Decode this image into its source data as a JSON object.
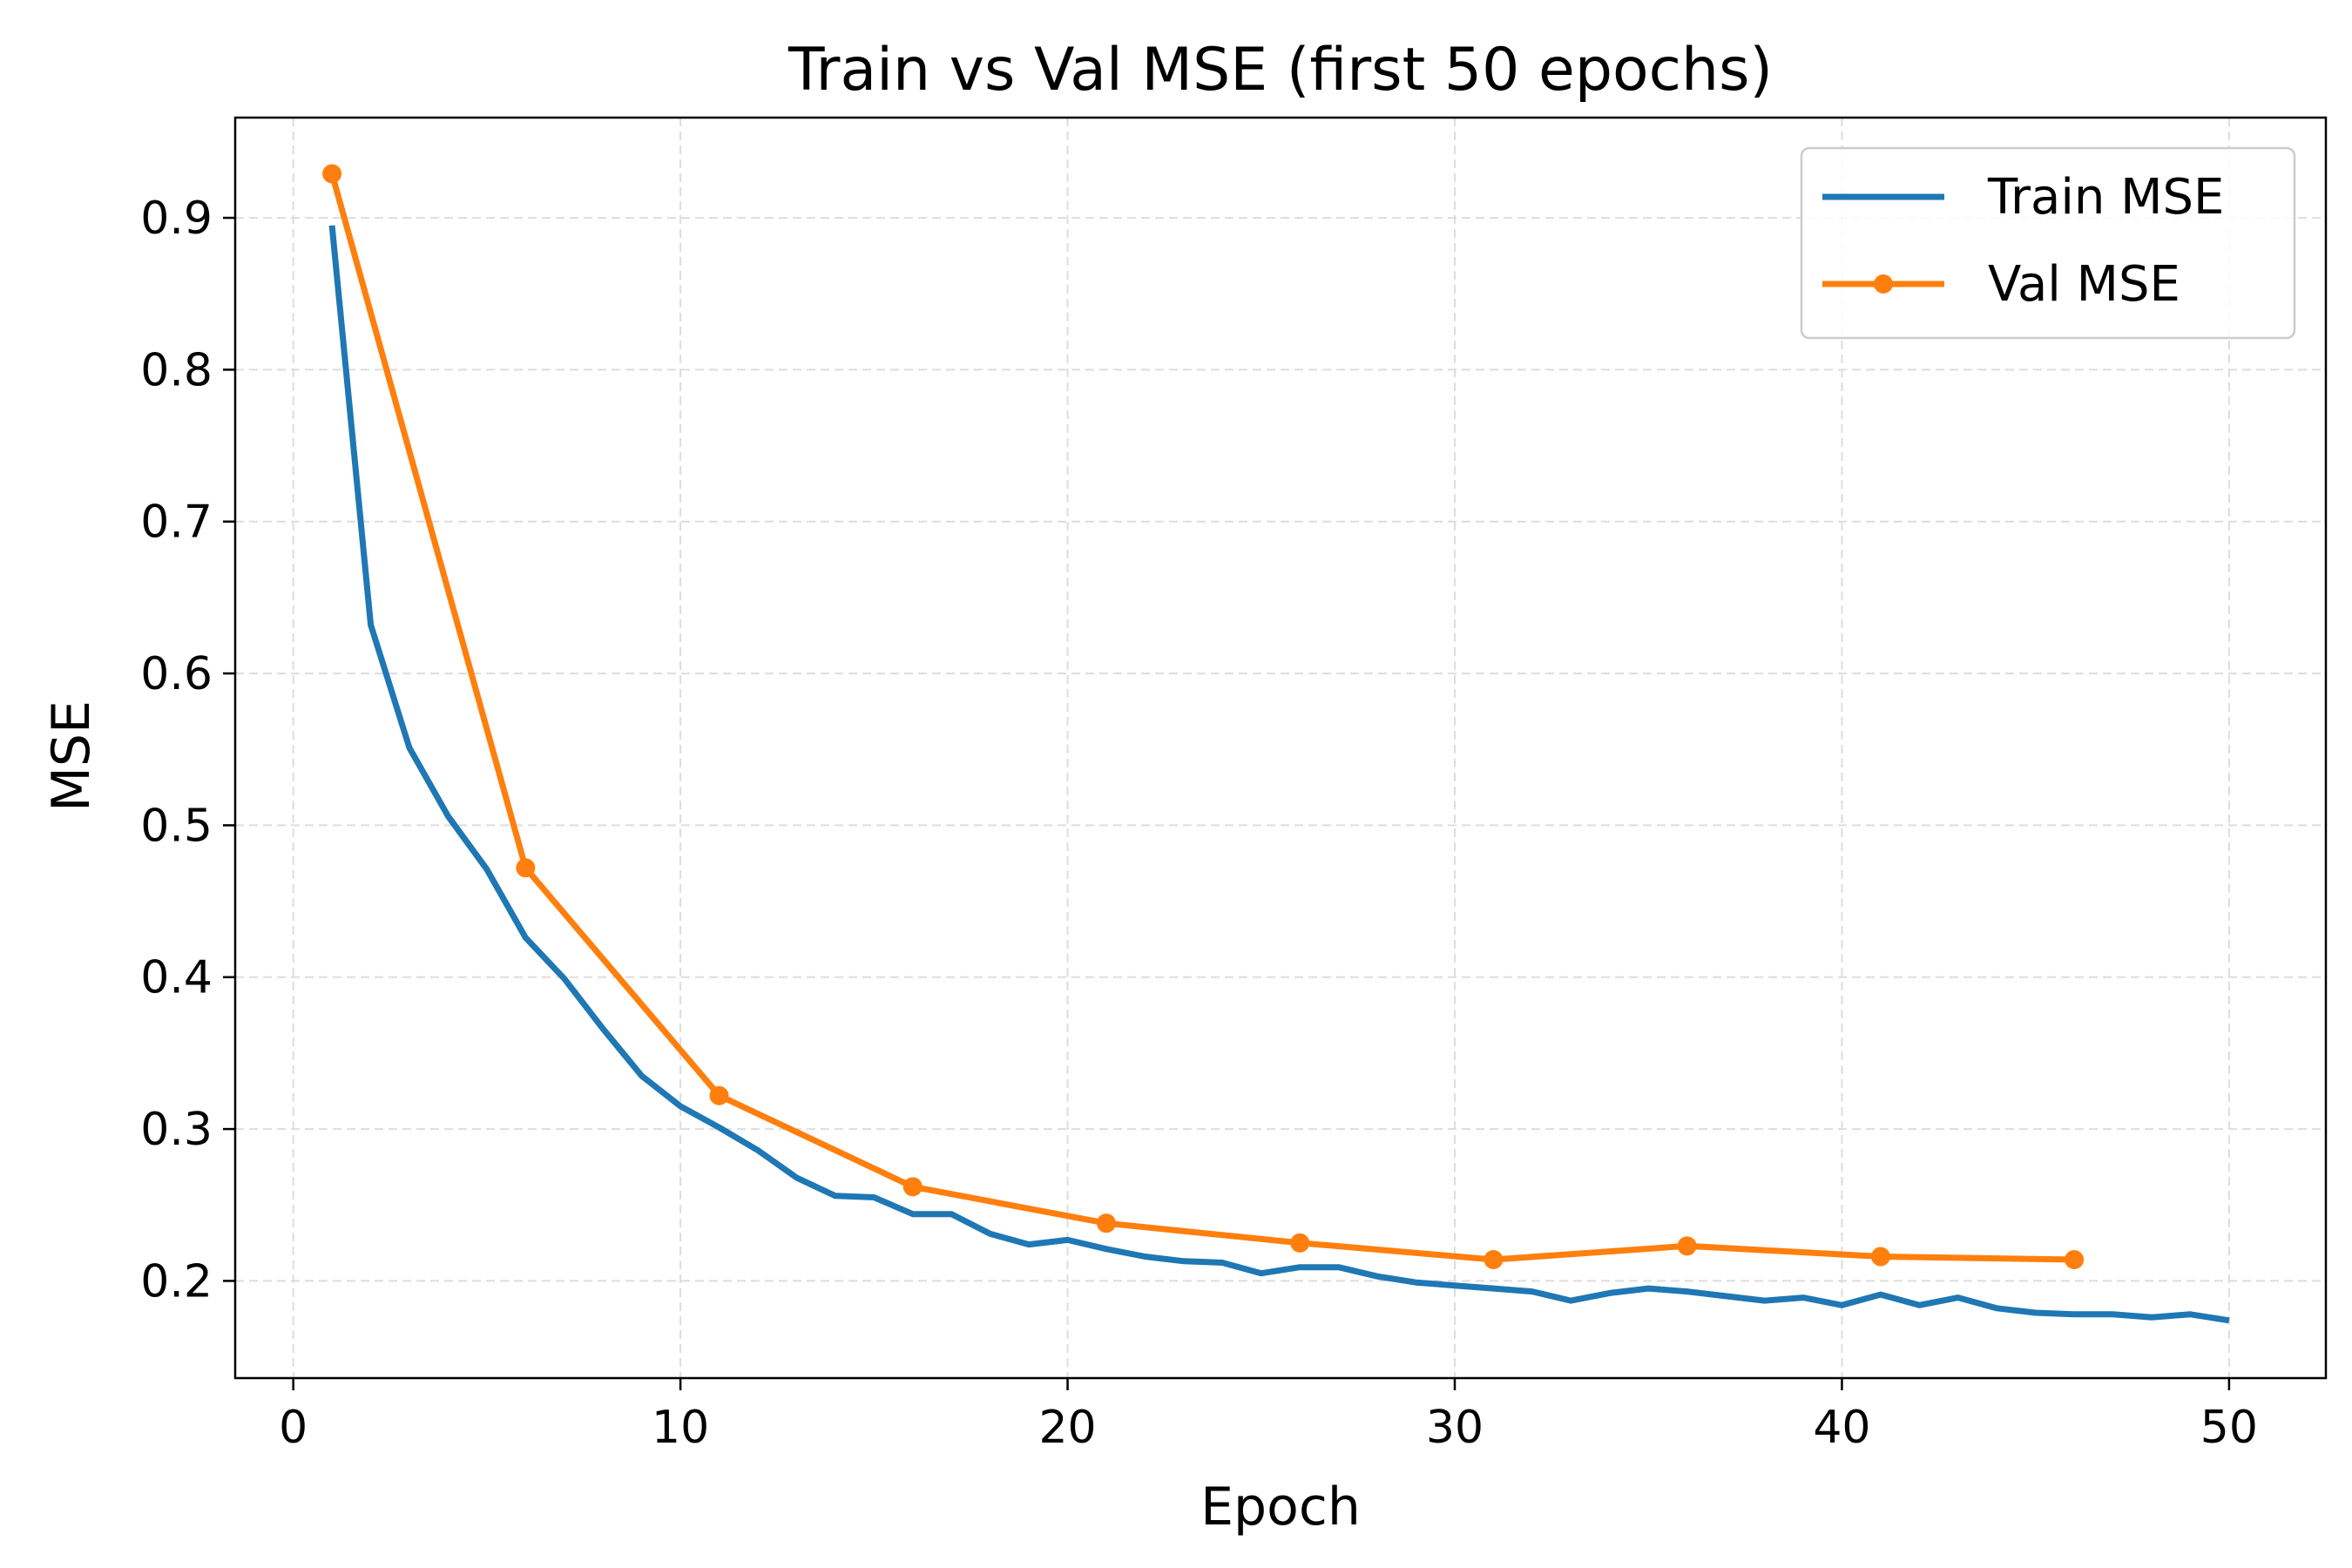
{
  "chart_data": {
    "type": "line",
    "title": "Train vs Val MSE (first 50 epochs)",
    "xlabel": "Epoch",
    "ylabel": "MSE",
    "xlim": [
      -1.5,
      52.5
    ],
    "ylim": [
      0.136,
      0.966
    ],
    "xticks": [
      0,
      10,
      20,
      30,
      40,
      50
    ],
    "yticks": [
      0.2,
      0.3,
      0.4,
      0.5,
      0.6,
      0.7,
      0.8,
      0.9
    ],
    "grid": true,
    "legend_position": "top-right",
    "series": [
      {
        "name": "Train MSE",
        "color": "#1f77b4",
        "marker": false,
        "x": [
          1,
          2,
          3,
          4,
          5,
          6,
          7,
          8,
          9,
          10,
          11,
          12,
          13,
          14,
          15,
          16,
          17,
          18,
          19,
          20,
          21,
          22,
          23,
          24,
          25,
          26,
          27,
          28,
          29,
          30,
          31,
          32,
          33,
          34,
          35,
          36,
          37,
          38,
          39,
          40,
          41,
          42,
          43,
          44,
          45,
          46,
          47,
          48,
          49,
          50
        ],
        "y": [
          0.895,
          0.632,
          0.551,
          0.506,
          0.471,
          0.426,
          0.399,
          0.366,
          0.335,
          0.315,
          0.301,
          0.286,
          0.268,
          0.256,
          0.255,
          0.244,
          0.244,
          0.231,
          0.224,
          0.227,
          0.221,
          0.216,
          0.213,
          0.212,
          0.205,
          0.209,
          0.209,
          0.203,
          0.199,
          0.197,
          0.195,
          0.193,
          0.187,
          0.192,
          0.195,
          0.193,
          0.19,
          0.187,
          0.189,
          0.184,
          0.191,
          0.184,
          0.189,
          0.182,
          0.179,
          0.178,
          0.178,
          0.176,
          0.178,
          0.174
        ]
      },
      {
        "name": "Val MSE",
        "color": "#ff7f0e",
        "marker": true,
        "x": [
          1,
          6,
          11,
          16,
          21,
          26,
          31,
          36,
          41,
          46
        ],
        "y": [
          0.929,
          0.472,
          0.322,
          0.262,
          0.238,
          0.225,
          0.214,
          0.223,
          0.216,
          0.214
        ]
      }
    ]
  }
}
